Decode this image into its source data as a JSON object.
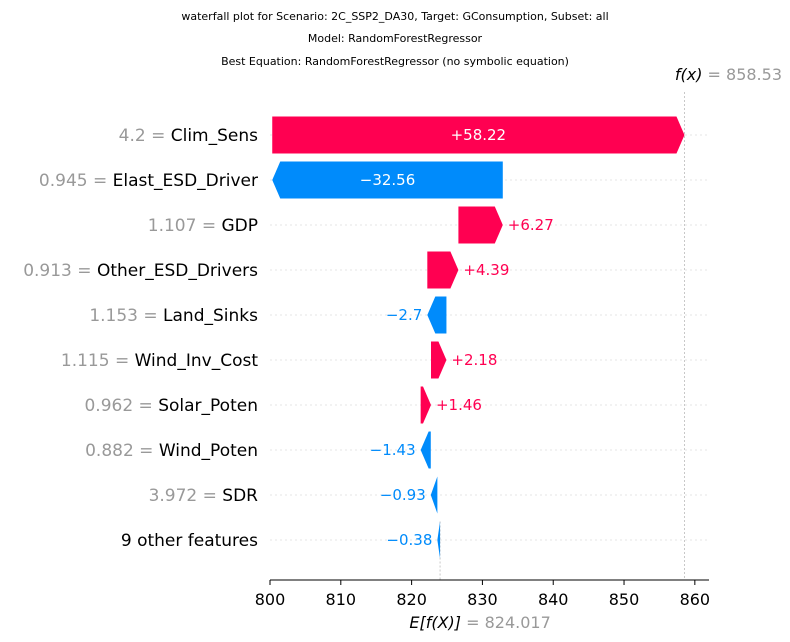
{
  "titles": {
    "line1": "waterfall plot for Scenario: 2C_SSP2_DA30, Target: GConsumption, Subset: all",
    "line2": "Model: RandomForestRegressor",
    "line3": "Best Equation: RandomForestRegressor (no symbolic equation)"
  },
  "chart_data": {
    "type": "waterfall",
    "base_value": 824.017,
    "base_label": "E[f(X)]",
    "base_value_text": "= 824.017",
    "output_value": 858.53,
    "output_label": "f(x)",
    "output_value_text": "= 858.53",
    "xlim": [
      800,
      862
    ],
    "xticks": [
      800,
      810,
      820,
      830,
      840,
      850,
      860
    ],
    "features": [
      {
        "value_text": "4.2",
        "name": "Clim_Sens",
        "contribution": 58.22,
        "label": "+58.22"
      },
      {
        "value_text": "0.945",
        "name": "Elast_ESD_Driver",
        "contribution": -32.56,
        "label": "−32.56"
      },
      {
        "value_text": "1.107",
        "name": "GDP",
        "contribution": 6.27,
        "label": "+6.27"
      },
      {
        "value_text": "0.913",
        "name": "Other_ESD_Drivers",
        "contribution": 4.39,
        "label": "+4.39"
      },
      {
        "value_text": "1.153",
        "name": "Land_Sinks",
        "contribution": -2.7,
        "label": "−2.7"
      },
      {
        "value_text": "1.115",
        "name": "Wind_Inv_Cost",
        "contribution": 2.18,
        "label": "+2.18"
      },
      {
        "value_text": "0.962",
        "name": "Solar_Poten",
        "contribution": 1.46,
        "label": "+1.46"
      },
      {
        "value_text": "0.882",
        "name": "Wind_Poten",
        "contribution": -1.43,
        "label": "−1.43"
      },
      {
        "value_text": "3.972",
        "name": "SDR",
        "contribution": -0.93,
        "label": "−0.93"
      },
      {
        "value_text": "",
        "name": "9 other features",
        "contribution": -0.38,
        "label": "−0.38"
      }
    ],
    "colors": {
      "positive": "#ff0051",
      "negative": "#008bfb",
      "value_gray": "#999999",
      "grid": "#e6e6e6"
    }
  }
}
